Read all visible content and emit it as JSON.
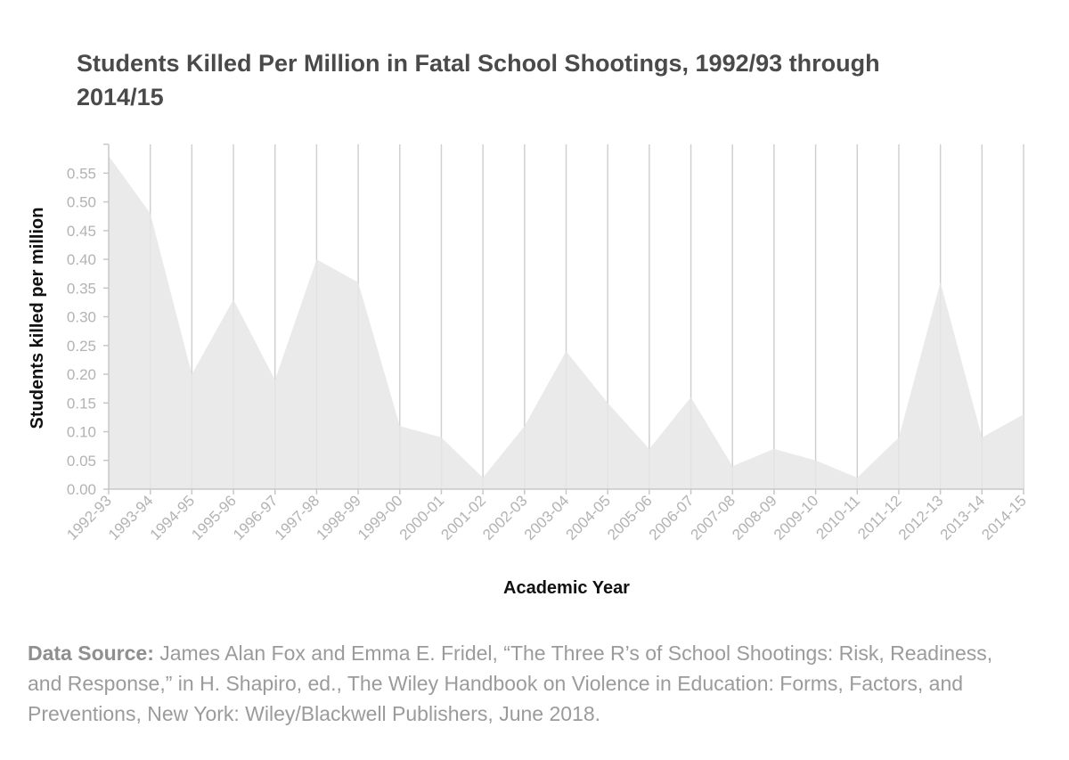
{
  "title": "Students Killed Per Million in Fatal School Shootings, 1992/93 through 2014/15",
  "source": {
    "label": "Data Source:",
    "text": "James Alan Fox and Emma E. Fridel, “The Three R’s of School Shootings: Risk, Readiness, and Response,” in H. Shapiro, ed., The Wiley Handbook on Violence in Education: Forms, Factors, and Preventions, New York: Wiley/Blackwell Publishers, June 2018."
  },
  "chart_data": {
    "type": "area",
    "xlabel": "Academic Year",
    "ylabel": "Students killed per million",
    "ylim": [
      0,
      0.58
    ],
    "yticks": [
      "0.00",
      "0.05",
      "0.10",
      "0.15",
      "0.20",
      "0.25",
      "0.30",
      "0.35",
      "0.40",
      "0.45",
      "0.50",
      "0.55"
    ],
    "grid": "vertical",
    "fill_color": "#e6e6e6",
    "grid_color": "#d0d0d0",
    "categories": [
      "1992-93",
      "1993-94",
      "1994-95",
      "1995-96",
      "1996-97",
      "1997-98",
      "1998-99",
      "1999-00",
      "2000-01",
      "2001-02",
      "2002-03",
      "2003-04",
      "2004-05",
      "2005-06",
      "2006-07",
      "2007-08",
      "2008-09",
      "2009-10",
      "2010-11",
      "2011-12",
      "2012-13",
      "2013-14",
      "2014-15"
    ],
    "values": [
      0.58,
      0.48,
      0.2,
      0.33,
      0.19,
      0.4,
      0.36,
      0.11,
      0.09,
      0.02,
      0.11,
      0.24,
      0.15,
      0.07,
      0.16,
      0.04,
      0.07,
      0.05,
      0.02,
      0.09,
      0.36,
      0.09,
      0.13
    ]
  }
}
